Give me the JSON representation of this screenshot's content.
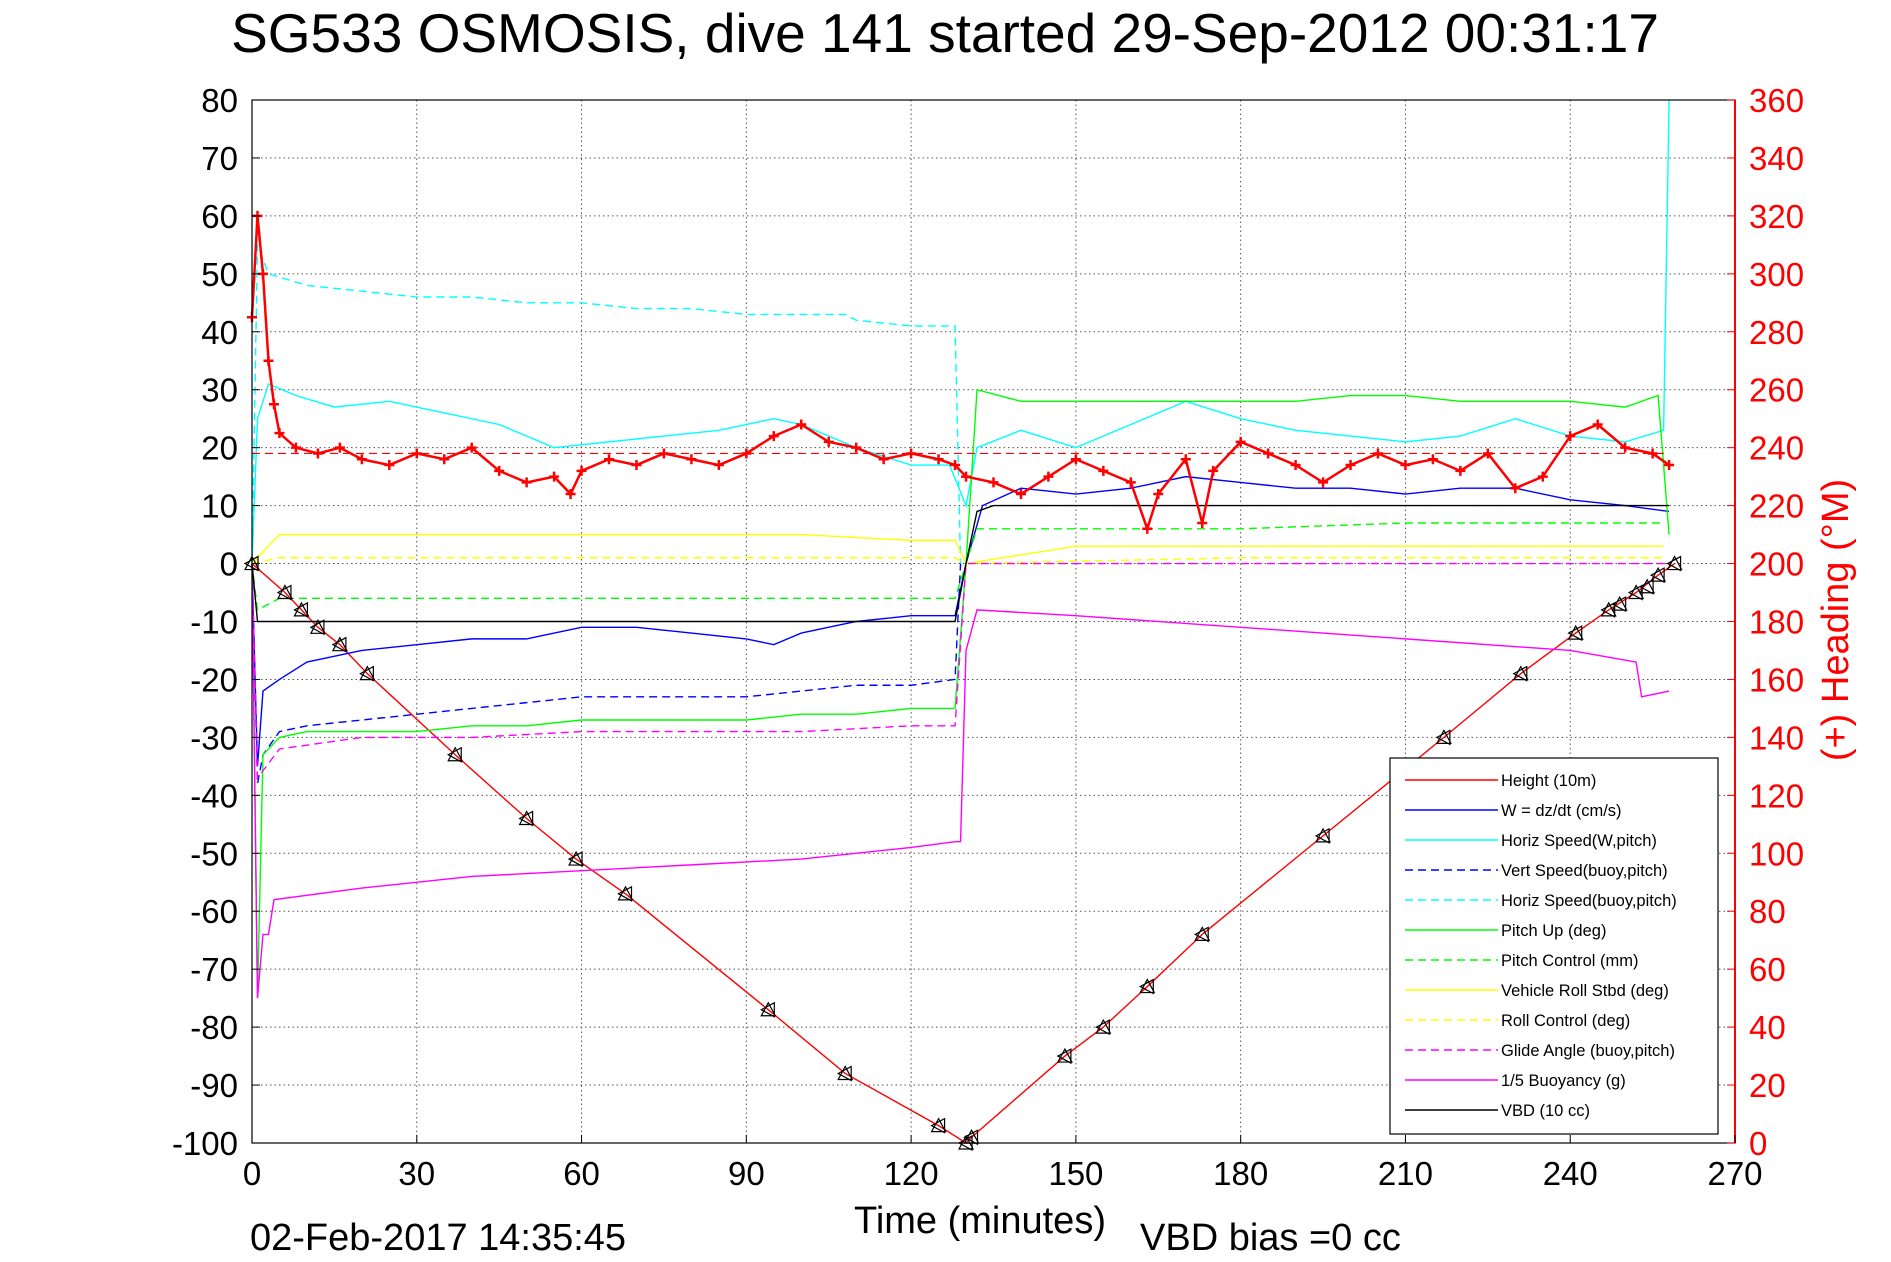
{
  "title": "SG533 OSMOSIS, dive 141 started 29-Sep-2012 00:31:17",
  "footer": {
    "timestamp": "02-Feb-2017 14:35:45",
    "vbd_bias": "VBD bias =0 cc"
  },
  "chart_data": {
    "type": "line",
    "xlabel": "Time (minutes)",
    "ylabel_right": "(+) Heading (°M)",
    "xlim": [
      0,
      270
    ],
    "ylim": [
      -100,
      80
    ],
    "ylim_right": [
      0,
      360
    ],
    "x_ticks": [
      "0",
      "30",
      "60",
      "90",
      "120",
      "150",
      "180",
      "210",
      "240",
      "270"
    ],
    "y_ticks": [
      "80",
      "70",
      "60",
      "50",
      "40",
      "30",
      "20",
      "10",
      "0",
      "-10",
      "-20",
      "-30",
      "-40",
      "-50",
      "-60",
      "-70",
      "-80",
      "-90",
      "-100"
    ],
    "y_ticks_right": [
      "360",
      "340",
      "320",
      "300",
      "280",
      "260",
      "240",
      "220",
      "200",
      "180",
      "160",
      "140",
      "120",
      "100",
      "80",
      "60",
      "40",
      "20",
      "0"
    ],
    "grid": true,
    "legend_position": "bottom-right",
    "series": [
      {
        "name": "Height (10m)",
        "color": "#ff0000",
        "style": "solid",
        "x": [
          0,
          6,
          9,
          12,
          16,
          21,
          37,
          50,
          59,
          68,
          94,
          108,
          125,
          130,
          131,
          148,
          155,
          163,
          173,
          195,
          217,
          231,
          241,
          247,
          252,
          256,
          259
        ],
        "y": [
          0,
          -5,
          -8,
          -11,
          -14,
          -19,
          -33,
          -44,
          -51,
          -57,
          -77,
          -88,
          -97,
          -100,
          -99,
          -85,
          -80,
          -73,
          -64,
          -47,
          -30,
          -19,
          -12,
          -8,
          -5,
          -2,
          0
        ]
      },
      {
        "name": "W = dz/dt (cm/s)",
        "color": "#0000ff",
        "style": "solid",
        "x": [
          0,
          1,
          2,
          5,
          10,
          20,
          30,
          40,
          50,
          60,
          70,
          80,
          90,
          95,
          100,
          110,
          120,
          128,
          130,
          133,
          140,
          150,
          160,
          170,
          180,
          190,
          200,
          210,
          220,
          230,
          240,
          250,
          258
        ],
        "y": [
          0,
          -35,
          -22,
          -20,
          -17,
          -15,
          -14,
          -13,
          -13,
          -11,
          -11,
          -12,
          -13,
          -14,
          -12,
          -10,
          -9,
          -9,
          0,
          10,
          13,
          12,
          13,
          15,
          14,
          13,
          13,
          12,
          13,
          13,
          11,
          10,
          9
        ]
      },
      {
        "name": "Horiz Speed(W,pitch)",
        "color": "#00ffff",
        "style": "solid",
        "x": [
          0,
          1,
          3,
          8,
          15,
          25,
          35,
          45,
          55,
          65,
          75,
          85,
          95,
          100,
          110,
          120,
          127,
          130,
          132,
          140,
          150,
          160,
          170,
          180,
          190,
          200,
          210,
          220,
          230,
          240,
          250,
          257,
          258
        ],
        "y": [
          0,
          25,
          31,
          29,
          27,
          28,
          26,
          24,
          20,
          21,
          22,
          23,
          25,
          24,
          20,
          17,
          17,
          10,
          20,
          23,
          20,
          24,
          28,
          25,
          23,
          22,
          21,
          22,
          25,
          22,
          21,
          23,
          80
        ]
      },
      {
        "name": "Vert Speed(buoy,pitch)",
        "color": "#0000ff",
        "style": "dashed",
        "x": [
          0,
          1,
          2,
          5,
          10,
          20,
          30,
          40,
          50,
          60,
          70,
          80,
          90,
          100,
          110,
          120,
          128,
          129
        ],
        "y": [
          0,
          -38,
          -33,
          -29,
          -28,
          -27,
          -26,
          -25,
          -24,
          -23,
          -23,
          -23,
          -23,
          -22,
          -21,
          -21,
          -20,
          0
        ]
      },
      {
        "name": "Horiz Speed(buoy,pitch)",
        "color": "#00ffff",
        "style": "dashed",
        "x": [
          0,
          1,
          3,
          10,
          20,
          30,
          40,
          50,
          60,
          70,
          80,
          90,
          100,
          108,
          110,
          120,
          128,
          129
        ],
        "y": [
          0,
          55,
          50,
          48,
          47,
          46,
          46,
          45,
          45,
          44,
          44,
          43,
          43,
          43,
          42,
          41,
          41,
          0
        ]
      },
      {
        "name": "Pitch Up (deg)",
        "color": "#00ff00",
        "style": "solid",
        "x": [
          0,
          1,
          2,
          5,
          10,
          20,
          30,
          40,
          50,
          60,
          70,
          80,
          90,
          100,
          110,
          120,
          128,
          130,
          132,
          140,
          150,
          160,
          170,
          180,
          190,
          200,
          210,
          220,
          230,
          240,
          250,
          256,
          258
        ],
        "y": [
          0,
          -75,
          -33,
          -30,
          -29,
          -29,
          -29,
          -28,
          -28,
          -27,
          -27,
          -27,
          -27,
          -26,
          -26,
          -25,
          -25,
          0,
          30,
          28,
          28,
          28,
          28,
          28,
          28,
          29,
          29,
          28,
          28,
          28,
          27,
          29,
          5
        ]
      },
      {
        "name": "Pitch Control (mm)",
        "color": "#00ff00",
        "style": "dashed",
        "x": [
          0,
          1,
          5,
          20,
          40,
          60,
          80,
          100,
          120,
          128,
          130,
          132,
          150,
          180,
          210,
          240,
          257
        ],
        "y": [
          0,
          -8,
          -6,
          -6,
          -6,
          -6,
          -6,
          -6,
          -6,
          -6,
          0,
          6,
          6,
          6,
          7,
          7,
          7
        ]
      },
      {
        "name": "Vehicle Roll Stbd (deg)",
        "color": "#ffff00",
        "style": "solid",
        "x": [
          0,
          5,
          20,
          40,
          60,
          80,
          100,
          120,
          128,
          130,
          150,
          170,
          190,
          210,
          230,
          250,
          257
        ],
        "y": [
          0,
          5,
          5,
          5,
          5,
          5,
          5,
          4,
          4,
          0,
          3,
          3,
          3,
          3,
          3,
          3,
          3
        ]
      },
      {
        "name": "Roll Control (deg)",
        "color": "#ffff00",
        "style": "dashed",
        "x": [
          0,
          5,
          40,
          80,
          128,
          130,
          180,
          230,
          257
        ],
        "y": [
          0,
          1,
          1,
          1,
          1,
          0,
          1,
          1,
          1
        ]
      },
      {
        "name": "Glide Angle (buoy,pitch)",
        "color": "#ff00ff",
        "style": "dashed",
        "x": [
          0,
          1,
          5,
          20,
          40,
          60,
          80,
          100,
          120,
          128,
          130,
          150,
          180,
          210,
          240,
          258
        ],
        "y": [
          0,
          -37,
          -32,
          -30,
          -30,
          -29,
          -29,
          -29,
          -28,
          -28,
          0,
          0,
          0,
          0,
          0,
          0
        ]
      },
      {
        "name": "1/5 Buoyancy (g)",
        "color": "#ff00ff",
        "style": "solid",
        "x": [
          0,
          1,
          2,
          3,
          4,
          20,
          40,
          60,
          80,
          100,
          120,
          128,
          129,
          130,
          132,
          150,
          180,
          210,
          240,
          252,
          253,
          258
        ],
        "y": [
          0,
          -75,
          -64,
          -64,
          -58,
          -56,
          -54,
          -53,
          -52,
          -51,
          -49,
          -48,
          -48,
          -15,
          -8,
          -9,
          -11,
          -13,
          -15,
          -17,
          -23,
          -22
        ]
      },
      {
        "name": "VBD (10 cc)",
        "color": "#000000",
        "style": "solid",
        "x": [
          0,
          1,
          2,
          20,
          60,
          100,
          128,
          130,
          132,
          135,
          180,
          240,
          258
        ],
        "y": [
          0,
          -10,
          -10,
          -10,
          -10,
          -10,
          -10,
          0,
          9,
          10,
          10,
          10,
          10
        ]
      },
      {
        "name": "Heading (°M)",
        "color": "#ff0000",
        "style": "markers",
        "axis": "right",
        "x": [
          0,
          1,
          2,
          3,
          4,
          5,
          8,
          12,
          16,
          20,
          25,
          30,
          35,
          40,
          45,
          50,
          55,
          58,
          60,
          65,
          70,
          75,
          80,
          85,
          90,
          95,
          100,
          105,
          110,
          115,
          120,
          125,
          128,
          130,
          135,
          140,
          145,
          150,
          155,
          160,
          163,
          165,
          170,
          173,
          175,
          180,
          185,
          190,
          195,
          200,
          205,
          210,
          215,
          220,
          225,
          230,
          235,
          240,
          245,
          250,
          255,
          258
        ],
        "y": [
          285,
          320,
          300,
          270,
          255,
          245,
          240,
          238,
          240,
          236,
          234,
          238,
          236,
          240,
          232,
          228,
          230,
          224,
          232,
          236,
          234,
          238,
          236,
          234,
          238,
          244,
          248,
          242,
          240,
          236,
          238,
          236,
          234,
          230,
          228,
          224,
          230,
          236,
          232,
          228,
          212,
          224,
          236,
          214,
          232,
          242,
          238,
          234,
          228,
          234,
          238,
          234,
          236,
          232,
          238,
          226,
          230,
          244,
          248,
          240,
          238,
          234
        ]
      }
    ],
    "heading_reference": {
      "value": 238,
      "color": "#ff0000",
      "style": "dashed"
    },
    "markers": {
      "x": [
        0,
        6,
        9,
        12,
        16,
        21,
        37,
        50,
        59,
        68,
        94,
        108,
        125,
        130,
        131,
        148,
        155,
        163,
        173,
        195,
        217,
        231,
        241,
        247,
        249,
        252,
        254,
        256,
        259
      ],
      "y": [
        0,
        -5,
        -8,
        -11,
        -14,
        -19,
        -33,
        -44,
        -51,
        -57,
        -77,
        -88,
        -97,
        -100,
        -99,
        -85,
        -80,
        -73,
        -64,
        -47,
        -30,
        -19,
        -12,
        -8,
        -7,
        -5,
        -4,
        -2,
        0
      ]
    }
  }
}
